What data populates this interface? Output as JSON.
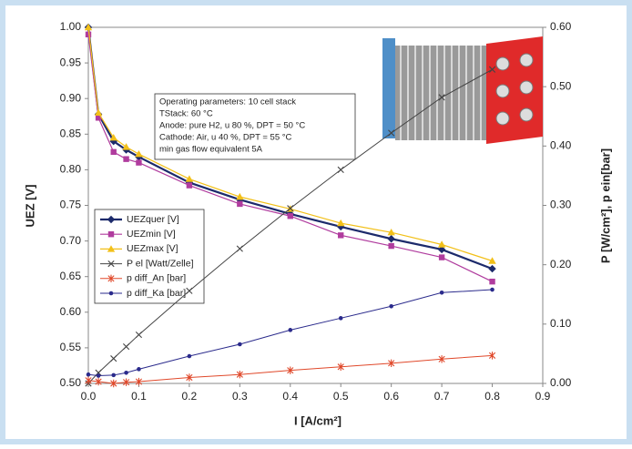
{
  "chart_data": {
    "type": "line",
    "xlabel": "I [A/cm²]",
    "ylabel": "UEZ [V]",
    "y2label": "P [W/cm²], p ein[bar]",
    "annotation": [
      "Operating parameters: 10 cell stack",
      "TStack: 60 °C",
      "Anode: pure H2, u 80 %, DPT = 50 °C",
      "Cathode: Air, u 40 %, DPT = 55 °C",
      "min gas flow equivalent 5A"
    ],
    "x": [
      0,
      0.02,
      0.05,
      0.075,
      0.1,
      0.2,
      0.3,
      0.4,
      0.5,
      0.6,
      0.7,
      0.8
    ],
    "xlim": [
      0,
      0.9
    ],
    "xticks": [
      {
        "value": 0,
        "label": "0.0"
      },
      {
        "value": 0.1,
        "label": "0.1"
      },
      {
        "value": 0.2,
        "label": "0.2"
      },
      {
        "value": 0.3,
        "label": "0.3"
      },
      {
        "value": 0.4,
        "label": "0.4"
      },
      {
        "value": 0.5,
        "label": "0.5"
      },
      {
        "value": 0.6,
        "label": "0.6"
      },
      {
        "value": 0.7,
        "label": "0.7"
      },
      {
        "value": 0.8,
        "label": "0.8"
      },
      {
        "value": 0.9,
        "label": "0.9"
      }
    ],
    "ylim": [
      0.5,
      1.0
    ],
    "yticks": [
      {
        "value": 0.5,
        "label": "0.50"
      },
      {
        "value": 0.55,
        "label": "0.55"
      },
      {
        "value": 0.6,
        "label": "0.60"
      },
      {
        "value": 0.65,
        "label": "0.65"
      },
      {
        "value": 0.7,
        "label": "0.70"
      },
      {
        "value": 0.75,
        "label": "0.75"
      },
      {
        "value": 0.8,
        "label": "0.80"
      },
      {
        "value": 0.85,
        "label": "0.85"
      },
      {
        "value": 0.9,
        "label": "0.90"
      },
      {
        "value": 0.95,
        "label": "0.95"
      },
      {
        "value": 1.0,
        "label": "1.00"
      }
    ],
    "y2lim": [
      0,
      0.6
    ],
    "y2ticks": [
      {
        "value": 0,
        "label": "0.00"
      },
      {
        "value": 0.1,
        "label": "0.10"
      },
      {
        "value": 0.2,
        "label": "0.20"
      },
      {
        "value": 0.3,
        "label": "0.30"
      },
      {
        "value": 0.4,
        "label": "0.40"
      },
      {
        "value": 0.5,
        "label": "0.50"
      },
      {
        "value": 0.6,
        "label": "0.60"
      }
    ],
    "grid": false,
    "series": [
      {
        "name": "UEZquer [V]",
        "color": "#1c2a6b",
        "marker": "diamond",
        "width": 2.2,
        "values": [
          1.0,
          0.878,
          0.84,
          0.828,
          0.818,
          0.782,
          0.758,
          0.738,
          0.72,
          0.703,
          0.688,
          0.661
        ]
      },
      {
        "name": "UEZmin [V]",
        "color": "#b03c9e",
        "marker": "square",
        "width": 1.2,
        "values": [
          0.99,
          0.873,
          0.825,
          0.815,
          0.81,
          0.778,
          0.752,
          0.735,
          0.708,
          0.693,
          0.677,
          0.643
        ]
      },
      {
        "name": "UEZmax [V]",
        "color": "#f2c019",
        "marker": "triangle",
        "width": 1.2,
        "values": [
          1.0,
          0.88,
          0.845,
          0.832,
          0.822,
          0.787,
          0.762,
          0.745,
          0.725,
          0.712,
          0.695,
          0.672
        ]
      },
      {
        "name": "P el [Watt/Zelle]",
        "color": "#444444",
        "marker": "x",
        "width": 1,
        "axis": "y2",
        "values": [
          0,
          0.018,
          0.042,
          0.062,
          0.082,
          0.156,
          0.227,
          0.295,
          0.36,
          0.422,
          0.482,
          0.529
        ]
      },
      {
        "name": "p diff_An [bar]",
        "color": "#e0482a",
        "marker": "star",
        "width": 1,
        "axis": "y2",
        "values": [
          0.005,
          0.003,
          0.0,
          0.002,
          0.003,
          0.01,
          0.015,
          0.022,
          0.028,
          0.034,
          0.041,
          0.047
        ]
      },
      {
        "name": "p diff_Ka [bar]",
        "color": "#2b2b8c",
        "marker": "circle",
        "width": 1,
        "axis": "y2",
        "values": [
          0.015,
          0.013,
          0.014,
          0.018,
          0.024,
          0.046,
          0.066,
          0.09,
          0.11,
          0.13,
          0.153,
          0.158
        ]
      }
    ]
  }
}
